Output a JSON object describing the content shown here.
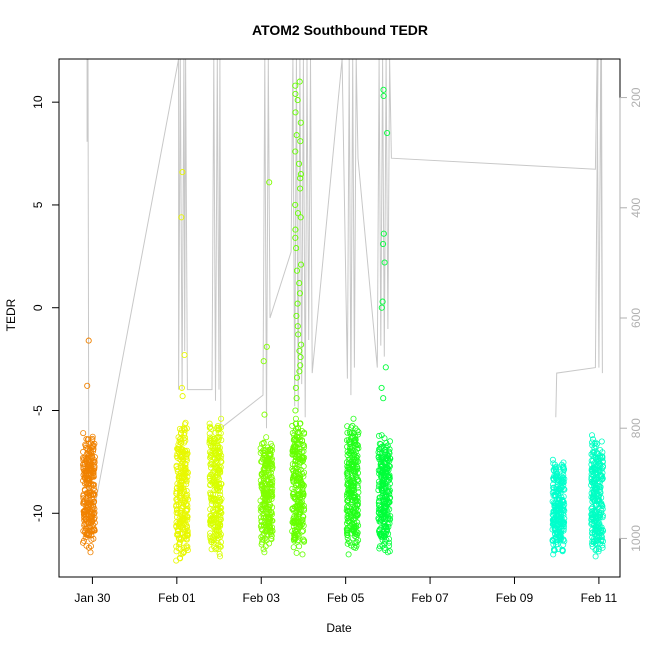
{
  "chart_data": {
    "type": "scatter",
    "title": "ATOM2 Southbound TEDR",
    "xlabel": "Date",
    "ylabel": "TEDR",
    "xlim": [
      "2024-01-29 05:00",
      "2024-02-11 12:00"
    ],
    "ylim": [
      -13.1,
      12.1
    ],
    "y2lim": [
      1070,
      130
    ],
    "x_ticks": [
      {
        "value": "2024-01-30",
        "label": "Jan 30"
      },
      {
        "value": "2024-02-01",
        "label": "Feb 01"
      },
      {
        "value": "2024-02-03",
        "label": "Feb 03"
      },
      {
        "value": "2024-02-05",
        "label": "Feb 05"
      },
      {
        "value": "2024-02-07",
        "label": "Feb 07"
      },
      {
        "value": "2024-02-09",
        "label": "Feb 09"
      },
      {
        "value": "2024-02-11",
        "label": "Feb 11"
      }
    ],
    "y_ticks": [
      -10,
      -5,
      0,
      5,
      10
    ],
    "y2_ticks": [
      200,
      400,
      600,
      800,
      1000
    ],
    "series_color_ramp": [
      "#ff8c00",
      "#ffd400",
      "#e8ff00",
      "#66ff00",
      "#00ff33",
      "#00ffcc",
      "#00ffd9"
    ],
    "point_clusters": [
      {
        "time": "2024-01-29 22:00",
        "color": "#f08200",
        "ymin": -11.9,
        "ymax": -6.1,
        "outliers": [
          -1.6,
          -3.8
        ]
      },
      {
        "time": "2024-02-01 03:00",
        "color": "#e8f800",
        "ymin": -12.3,
        "ymax": -5.6,
        "outliers": [
          6.6,
          4.4,
          -2.3,
          -3.9,
          -4.3
        ]
      },
      {
        "time": "2024-02-01 22:00",
        "color": "#d8ff00",
        "ymin": -12.1,
        "ymax": -5.4,
        "outliers": []
      },
      {
        "time": "2024-02-03 03:00",
        "color": "#80ff00",
        "ymin": -11.9,
        "ymax": -6.3,
        "outliers": [
          6.1,
          -1.9,
          -2.6,
          -5.2
        ]
      },
      {
        "time": "2024-02-03 21:00",
        "color": "#66ff00",
        "ymin": -12.0,
        "ymax": -5.4,
        "outliers": [
          11.0,
          10.8,
          10.4,
          10.1,
          9.5,
          9.0,
          8.4,
          8.1,
          7.6,
          7.0,
          6.5,
          6.3,
          5.8,
          5.0,
          4.6,
          4.4,
          3.8,
          3.4,
          2.9,
          2.1,
          1.8,
          1.2,
          0.7,
          0.2,
          -0.4,
          -0.9,
          -1.3,
          -1.8,
          -2.1,
          -2.4,
          -2.8,
          -3.1,
          -3.4,
          -3.9,
          -4.4,
          -5.0
        ]
      },
      {
        "time": "2024-02-05 04:00",
        "color": "#22ff1a",
        "ymin": -12.0,
        "ymax": -5.4,
        "outliers": []
      },
      {
        "time": "2024-02-05 22:00",
        "color": "#00ff3a",
        "ymin": -11.9,
        "ymax": -6.2,
        "outliers": [
          10.6,
          10.3,
          8.5,
          3.6,
          3.1,
          2.2,
          0.3,
          0.0,
          -2.9,
          -3.9,
          -4.4
        ]
      },
      {
        "time": "2024-02-10 01:00",
        "color": "#00ffcc",
        "ymin": -12.0,
        "ymax": -7.4,
        "outliers": []
      },
      {
        "time": "2024-02-10 23:00",
        "color": "#00ffc4",
        "ymin": -12.1,
        "ymax": -6.2,
        "outliers": []
      }
    ],
    "depth_trace": [
      [
        "2024-01-29 21:00",
        130
      ],
      [
        "2024-01-29 21:00",
        280
      ],
      [
        "2024-01-29 21:30",
        130
      ],
      [
        "2024-01-29 22:00",
        1000
      ],
      [
        "2024-02-01 01:00",
        130
      ],
      [
        "2024-02-01 01:00",
        730
      ],
      [
        "2024-02-01 02:00",
        130
      ],
      [
        "2024-02-01 03:00",
        730
      ],
      [
        "2024-02-01 04:00",
        130
      ],
      [
        "2024-02-01 04:30",
        660
      ],
      [
        "2024-02-01 05:00",
        130
      ],
      [
        "2024-02-01 06:00",
        730
      ],
      [
        "2024-02-01 20:00",
        730
      ],
      [
        "2024-02-01 21:00",
        130
      ],
      [
        "2024-02-01 22:00",
        750
      ],
      [
        "2024-02-01 23:00",
        130
      ],
      [
        "2024-02-02 00:00",
        730
      ],
      [
        "2024-02-02 00:30",
        130
      ],
      [
        "2024-02-02 01:00",
        800
      ],
      [
        "2024-02-03 01:00",
        740
      ],
      [
        "2024-02-03 02:00",
        130
      ],
      [
        "2024-02-03 03:00",
        800
      ],
      [
        "2024-02-03 04:00",
        130
      ],
      [
        "2024-02-03 05:00",
        600
      ],
      [
        "2024-02-03 17:00",
        480
      ],
      [
        "2024-02-03 18:00",
        130
      ],
      [
        "2024-02-03 19:00",
        760
      ],
      [
        "2024-02-03 20:00",
        130
      ],
      [
        "2024-02-03 21:00",
        770
      ],
      [
        "2024-02-03 22:00",
        130
      ],
      [
        "2024-02-03 23:00",
        720
      ],
      [
        "2024-02-04 00:00",
        130
      ],
      [
        "2024-02-04 01:00",
        780
      ],
      [
        "2024-02-04 02:00",
        130
      ],
      [
        "2024-02-04 03:00",
        640
      ],
      [
        "2024-02-04 04:00",
        130
      ],
      [
        "2024-02-04 05:00",
        700
      ],
      [
        "2024-02-04 22:00",
        130
      ],
      [
        "2024-02-05 01:00",
        710
      ],
      [
        "2024-02-05 02:00",
        130
      ],
      [
        "2024-02-05 03:00",
        740
      ],
      [
        "2024-02-05 04:00",
        130
      ],
      [
        "2024-02-05 05:00",
        690
      ],
      [
        "2024-02-05 06:00",
        130
      ],
      [
        "2024-02-05 07:00",
        310
      ],
      [
        "2024-02-05 18:00",
        690
      ],
      [
        "2024-02-05 19:00",
        130
      ],
      [
        "2024-02-05 20:00",
        650
      ],
      [
        "2024-02-05 21:00",
        130
      ],
      [
        "2024-02-05 22:00",
        670
      ],
      [
        "2024-02-05 23:00",
        130
      ],
      [
        "2024-02-06 00:00",
        620
      ],
      [
        "2024-02-06 01:00",
        130
      ],
      [
        "2024-02-06 02:00",
        310
      ],
      [
        "2024-02-10 22:00",
        330
      ],
      [
        "2024-02-10 23:00",
        130
      ],
      [
        "2024-02-11 00:00",
        690
      ],
      [
        "2024-02-11 01:00",
        130
      ],
      [
        "2024-02-11 02:00",
        700
      ],
      [
        "2024-02-11 01:30",
        130
      ]
    ],
    "depth_trace_segments_extra": [
      [
        [
          "2024-02-09 23:30",
          780
        ],
        [
          "2024-02-10 00:00",
          700
        ],
        [
          "2024-02-10 22:00",
          690
        ],
        [
          "2024-02-10 23:30",
          130
        ]
      ]
    ],
    "legend": "none",
    "grid": false
  }
}
